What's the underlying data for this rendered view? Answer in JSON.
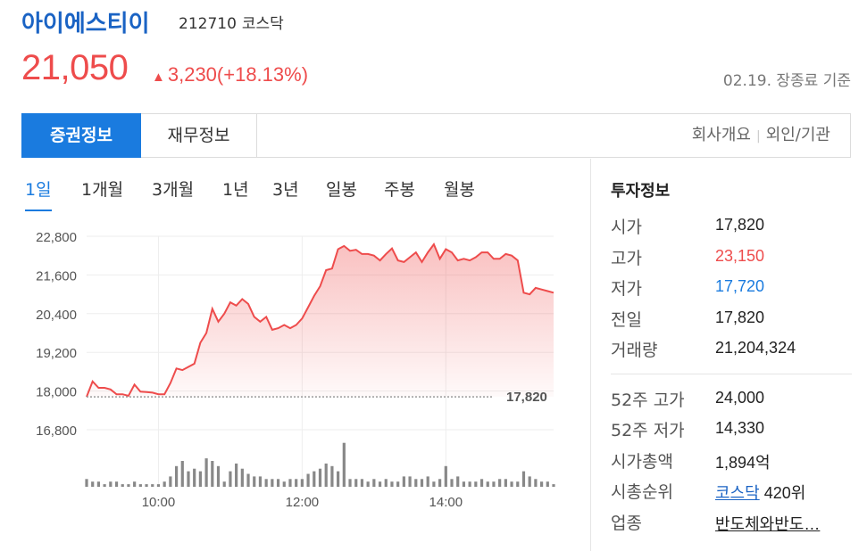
{
  "stock": {
    "name": "아이에스티이",
    "code": "212710",
    "market": "코스닥",
    "price": "21,050",
    "change_arrow": "▲",
    "change": "3,230(+18.13%)",
    "as_of": "02.19. 장종료 기준"
  },
  "tabs": {
    "active": "증권정보",
    "normal": "재무정보",
    "links": [
      "회사개요",
      "외인/기관"
    ]
  },
  "periods": [
    "1일",
    "1개월",
    "3개월",
    "1년",
    "3년",
    "일봉",
    "주봉",
    "월봉"
  ],
  "colors": {
    "up": "#ee4c4c",
    "down": "#1a7bdf",
    "accent": "#1a7bdf"
  },
  "chart_data": {
    "type": "line",
    "yticks": [
      "22,800",
      "21,600",
      "20,400",
      "19,200",
      "18,000",
      "16,800"
    ],
    "ylim": [
      16800,
      22800
    ],
    "xticks": [
      "10:00",
      "12:00",
      "14:00"
    ],
    "reference_label": "17,820",
    "reference_value": 17820,
    "x_start": "09:00",
    "x_end": "15:30",
    "x": [
      "09:00",
      "09:05",
      "09:10",
      "09:15",
      "09:20",
      "09:25",
      "09:30",
      "09:35",
      "09:40",
      "09:45",
      "09:50",
      "09:55",
      "10:00",
      "10:05",
      "10:10",
      "10:15",
      "10:20",
      "10:25",
      "10:30",
      "10:35",
      "10:40",
      "10:45",
      "10:50",
      "10:55",
      "11:00",
      "11:05",
      "11:10",
      "11:15",
      "11:20",
      "11:25",
      "11:30",
      "11:35",
      "11:40",
      "11:45",
      "11:50",
      "11:55",
      "12:00",
      "12:05",
      "12:10",
      "12:15",
      "12:20",
      "12:25",
      "12:30",
      "12:35",
      "12:40",
      "12:45",
      "12:50",
      "12:55",
      "13:00",
      "13:05",
      "13:10",
      "13:15",
      "13:20",
      "13:25",
      "13:30",
      "13:35",
      "13:40",
      "13:45",
      "13:50",
      "13:55",
      "14:00",
      "14:05",
      "14:10",
      "14:15",
      "14:20",
      "14:25",
      "14:30",
      "14:35",
      "14:40",
      "14:45",
      "14:50",
      "14:55",
      "15:00",
      "15:05",
      "15:10",
      "15:15",
      "15:20",
      "15:25",
      "15:30"
    ],
    "values": [
      17820,
      18300,
      18100,
      18100,
      18050,
      17900,
      17900,
      17850,
      18200,
      17980,
      17970,
      17950,
      17900,
      17900,
      18250,
      18700,
      18650,
      18750,
      18850,
      19500,
      19800,
      20550,
      20150,
      20400,
      20750,
      20650,
      20850,
      20700,
      20300,
      20150,
      20300,
      19900,
      19950,
      20050,
      19950,
      20050,
      20250,
      20600,
      20950,
      21250,
      21750,
      21800,
      22400,
      22500,
      22350,
      22380,
      22250,
      22250,
      22200,
      22050,
      22250,
      22420,
      22050,
      22000,
      22150,
      22300,
      22000,
      22300,
      22550,
      22100,
      22400,
      22300,
      22050,
      22100,
      22050,
      22150,
      22300,
      22300,
      22100,
      22100,
      22250,
      22200,
      22050,
      21050,
      21000,
      21200,
      21150,
      21100,
      21050
    ],
    "volume": [
      3,
      2,
      2,
      1,
      2,
      2,
      1,
      1,
      2,
      1,
      1,
      1,
      1,
      2,
      4,
      8,
      10,
      6,
      7,
      6,
      11,
      10,
      8,
      2,
      6,
      9,
      7,
      5,
      4,
      4,
      3,
      3,
      3,
      2,
      3,
      3,
      3,
      5,
      6,
      7,
      9,
      8,
      6,
      17,
      3,
      3,
      3,
      2,
      3,
      2,
      3,
      2,
      2,
      4,
      4,
      3,
      3,
      4,
      2,
      3,
      8,
      3,
      4,
      2,
      2,
      2,
      3,
      2,
      2,
      3,
      3,
      2,
      2,
      6,
      4,
      3,
      2,
      2,
      1
    ]
  },
  "invest": {
    "title": "투자정보",
    "rows": [
      {
        "label": "시가",
        "value": "17,820"
      },
      {
        "label": "고가",
        "value": "23,150"
      },
      {
        "label": "저가",
        "value": "17,720"
      },
      {
        "label": "전일",
        "value": "17,820"
      },
      {
        "label": "거래량",
        "value": "21,204,324"
      }
    ],
    "rows2": [
      {
        "label": "52주 고가",
        "value": "24,000"
      },
      {
        "label": "52주 저가",
        "value": "14,330"
      },
      {
        "label": "시가총액",
        "value": "1,894",
        "suffix": "억"
      },
      {
        "label": "시총순위",
        "value": "코스닥",
        "suffix": " 420위"
      },
      {
        "label": "업종",
        "value": "반도체와반도…"
      }
    ]
  }
}
